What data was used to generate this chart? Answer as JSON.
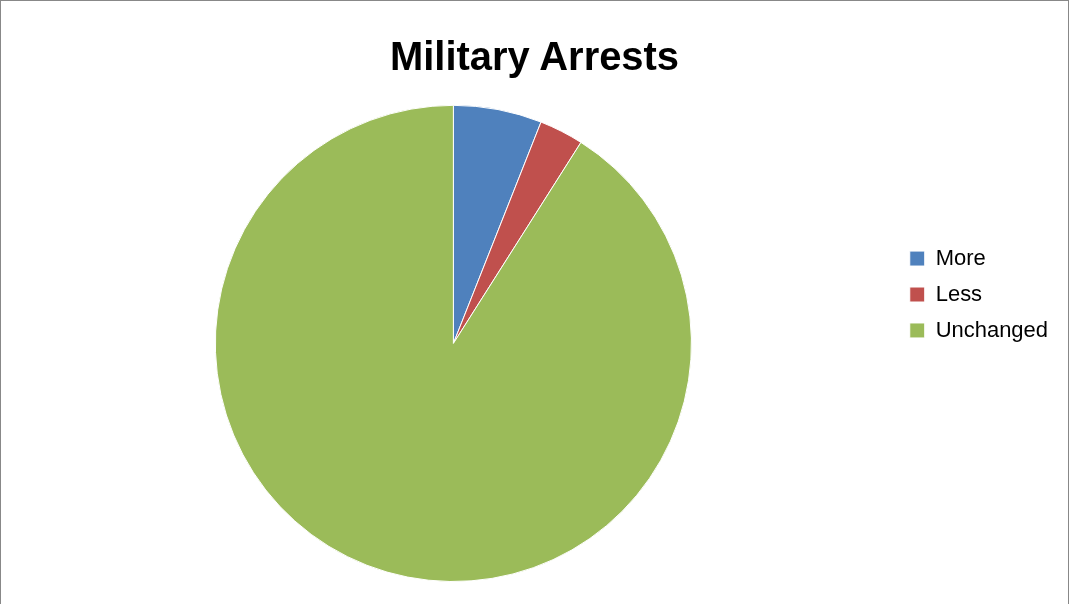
{
  "chart_data": {
    "type": "pie",
    "title": "Military Arrests",
    "categories": [
      "More",
      "Less",
      "Unchanged"
    ],
    "values": [
      6,
      3,
      91
    ],
    "colors": [
      "#4f81bd",
      "#c0504d",
      "#9bbb59"
    ],
    "legend": "right"
  }
}
